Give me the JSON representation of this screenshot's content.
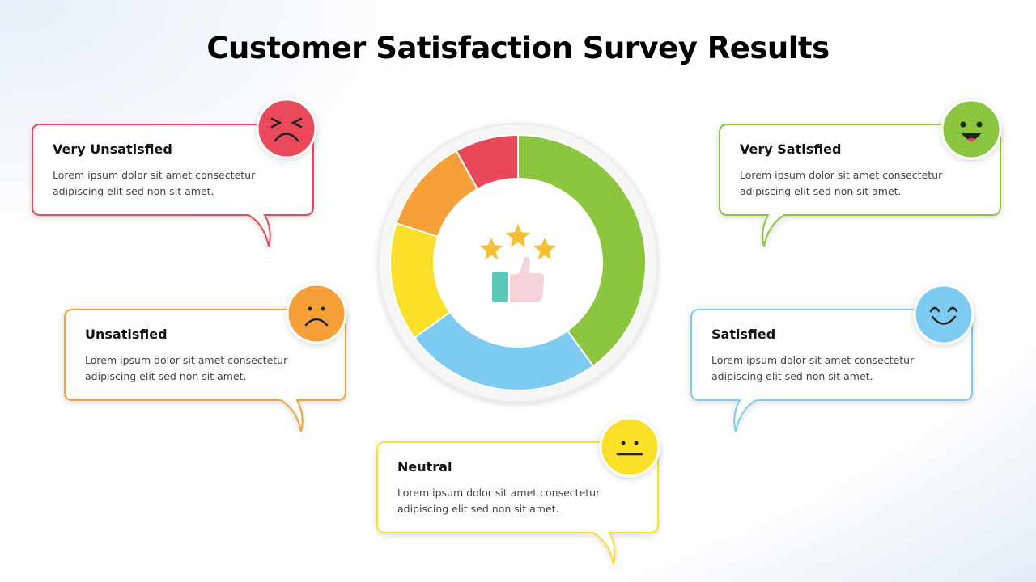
{
  "chart_data": {
    "type": "donut",
    "title": "Customer Satisfaction Survey Results",
    "categories": [
      "Very Satisfied",
      "Satisfied",
      "Neutral",
      "Unsatisfied",
      "Very Unsatisfied"
    ],
    "values": [
      40,
      25,
      15,
      12,
      8
    ],
    "colors": [
      "#8cc63f",
      "#7ecbf2",
      "#fbe02a",
      "#f5a038",
      "#e9485a"
    ],
    "descriptions": [
      "Lorem ipsum dolor sit amet consectetur adipiscing elit sed non sit amet.",
      "Lorem ipsum dolor sit amet consectetur adipiscing elit sed non sit amet.",
      "Lorem ipsum dolor sit amet consectetur adipiscing elit sed non sit amet.",
      "Lorem ipsum dolor sit amet consectetur adipiscing elit sed non sit amet.",
      "Lorem ipsum dolor sit amet consectetur adipiscing elit sed non sit amet."
    ]
  }
}
